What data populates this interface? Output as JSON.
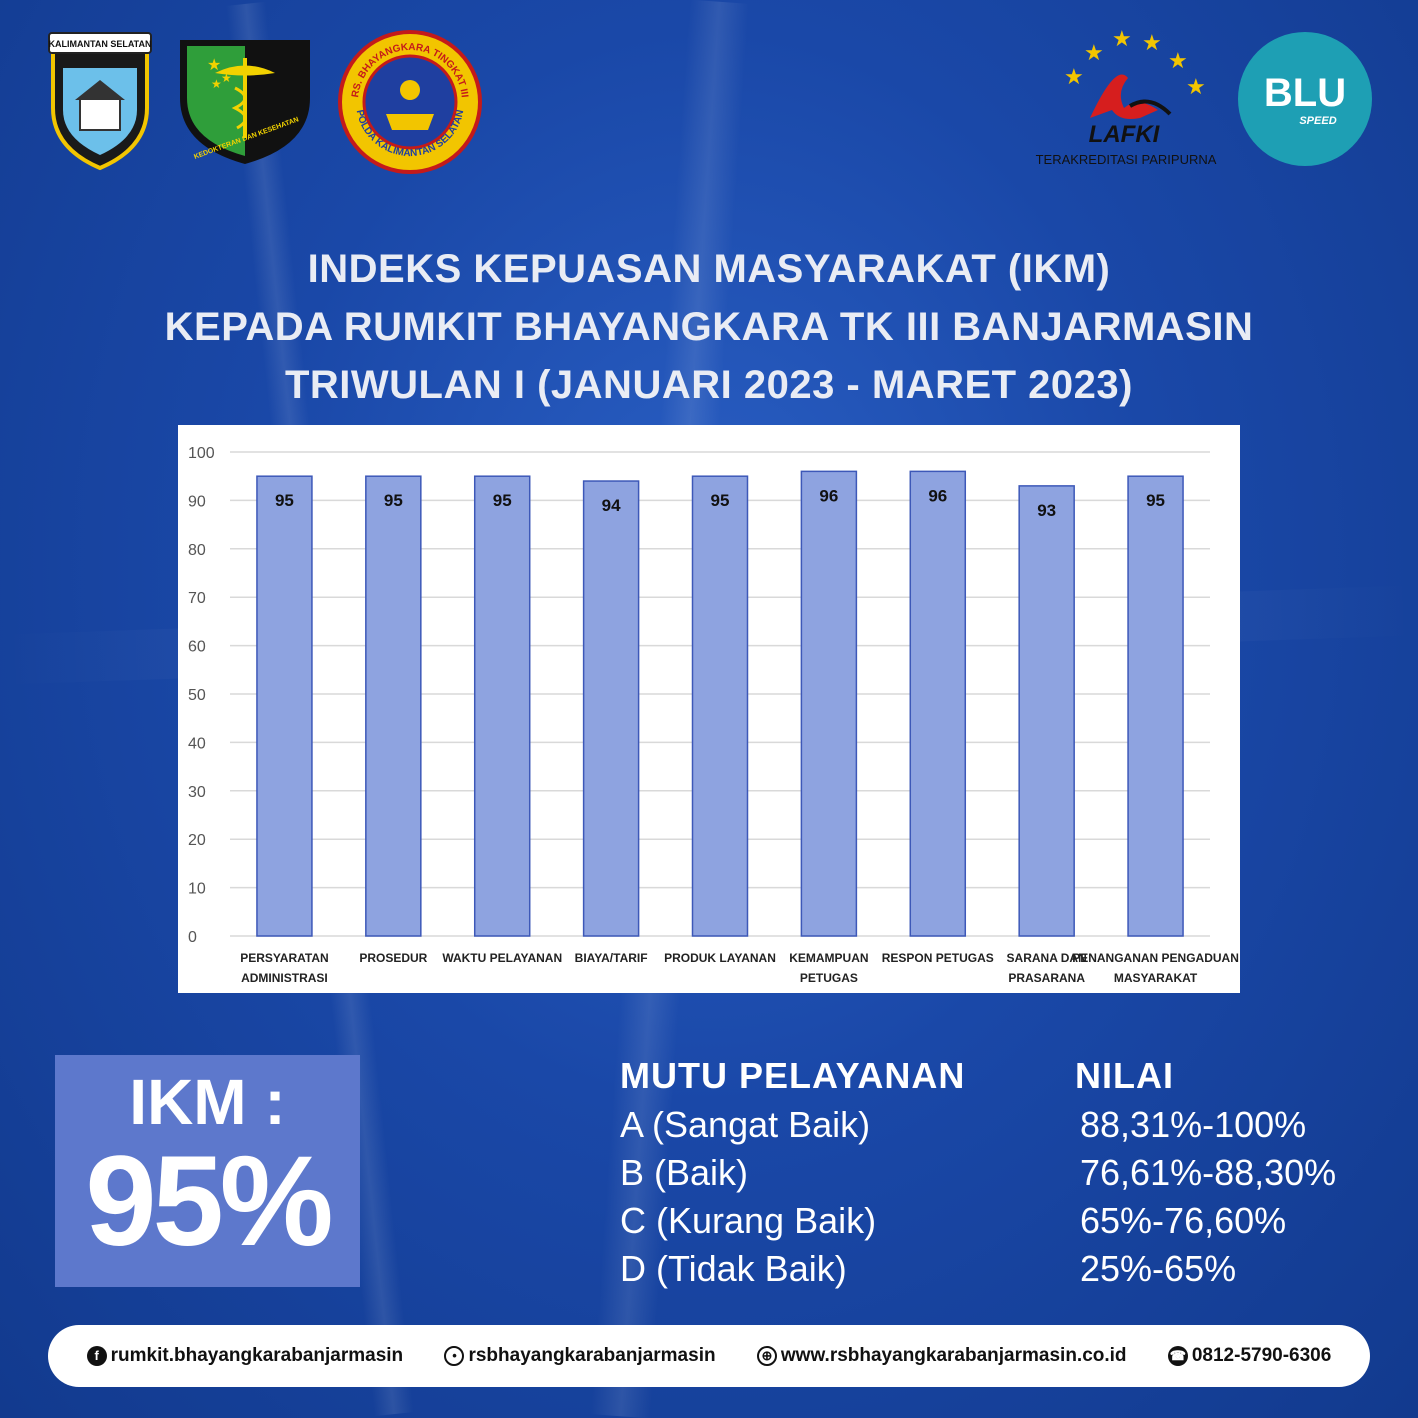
{
  "logos": {
    "polda_band": "KALIMANTAN SELATAN",
    "kedokteran_ring": "KEDOKTERAN DAN KESEHATAN",
    "rs_ring_top": "RS. BHAYANGKARA TINGKAT III",
    "rs_ring_bottom": "POLDA KALIMANTAN SELATAN",
    "lafki_name": "LAFKI",
    "lafki_sub": "TERAKREDITASI PARIPURNA",
    "blu_name": "BLU",
    "blu_sub": "SPEED"
  },
  "title": {
    "line1": "INDEKS KEPUASAN MASYARAKAT (IKM)",
    "line2": "KEPADA RUMKIT BHAYANGKARA TK III BANJARMASIN",
    "line3": "TRIWULAN I (JANUARI 2023 - MARET 2023)"
  },
  "chart_data": {
    "type": "bar",
    "title": "",
    "xlabel": "",
    "ylabel": "",
    "ylim": [
      0,
      100
    ],
    "yticks": [
      0,
      10,
      20,
      30,
      40,
      50,
      60,
      70,
      80,
      90,
      100
    ],
    "grid": true,
    "categories": [
      [
        "PERSYARATAN",
        "ADMINISTRASI"
      ],
      [
        "PROSEDUR"
      ],
      [
        "WAKTU PELAYANAN"
      ],
      [
        "BIAYA/TARIF"
      ],
      [
        "PRODUK LAYANAN"
      ],
      [
        "KEMAMPUAN",
        "PETUGAS"
      ],
      [
        "RESPON PETUGAS"
      ],
      [
        "SARANA DAN",
        "PRASARANA"
      ],
      [
        "PENANGANAN PENGADUAN",
        "MASYARAKAT"
      ]
    ],
    "values": [
      95,
      95,
      95,
      94,
      95,
      96,
      96,
      93,
      95
    ],
    "bar_color": "#8ea3e0",
    "bar_border": "#3d58b8"
  },
  "ikm": {
    "label": "IKM :",
    "value": "95%"
  },
  "scale": {
    "header_quality": "MUTU PELAYANAN",
    "header_value": "NILAI",
    "rows": [
      {
        "grade": "A (Sangat Baik)",
        "range": "88,31%-100%"
      },
      {
        "grade": "B (Baik)",
        "range": "76,61%-88,30%"
      },
      {
        "grade": "C (Kurang Baik)",
        "range": "65%-76,60%"
      },
      {
        "grade": "D (Tidak Baik)",
        "range": "25%-65%"
      }
    ]
  },
  "footer": {
    "facebook": "rumkit.bhayangkarabanjarmasin",
    "instagram": "rsbhayangkarabanjarmasin",
    "website": "www.rsbhayangkarabanjarmasin.co.id",
    "phone": "0812-5790-6306"
  },
  "colors": {
    "background": "#1a48a8",
    "ikm_box": "#5d78cc"
  }
}
